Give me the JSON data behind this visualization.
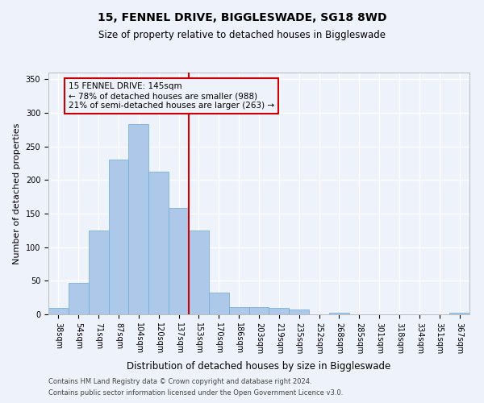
{
  "title1": "15, FENNEL DRIVE, BIGGLESWADE, SG18 8WD",
  "title2": "Size of property relative to detached houses in Biggleswade",
  "xlabel": "Distribution of detached houses by size in Biggleswade",
  "ylabel": "Number of detached properties",
  "footnote1": "Contains HM Land Registry data © Crown copyright and database right 2024.",
  "footnote2": "Contains public sector information licensed under the Open Government Licence v3.0.",
  "bin_labels": [
    "38sqm",
    "54sqm",
    "71sqm",
    "87sqm",
    "104sqm",
    "120sqm",
    "137sqm",
    "153sqm",
    "170sqm",
    "186sqm",
    "203sqm",
    "219sqm",
    "235sqm",
    "252sqm",
    "268sqm",
    "285sqm",
    "301sqm",
    "318sqm",
    "334sqm",
    "351sqm",
    "367sqm"
  ],
  "bar_heights": [
    10,
    47,
    125,
    230,
    283,
    212,
    158,
    125,
    33,
    11,
    11,
    10,
    7,
    0,
    3,
    0,
    0,
    0,
    0,
    0,
    2
  ],
  "bar_color": "#adc8e8",
  "bar_edge_color": "#6aaad4",
  "background_color": "#eef2fb",
  "grid_color": "#ffffff",
  "ylim": [
    0,
    360
  ],
  "yticks": [
    0,
    50,
    100,
    150,
    200,
    250,
    300,
    350
  ],
  "vline_x_index": 6.5,
  "annotation_box_text": "15 FENNEL DRIVE: 145sqm\n← 78% of detached houses are smaller (988)\n21% of semi-detached houses are larger (263) →",
  "annotation_box_color": "#cc0000",
  "vline_color": "#cc0000",
  "title1_fontsize": 10,
  "title2_fontsize": 8.5,
  "ylabel_fontsize": 8,
  "xlabel_fontsize": 8.5,
  "tick_fontsize": 7,
  "annot_fontsize": 7.5,
  "footnote_fontsize": 6
}
